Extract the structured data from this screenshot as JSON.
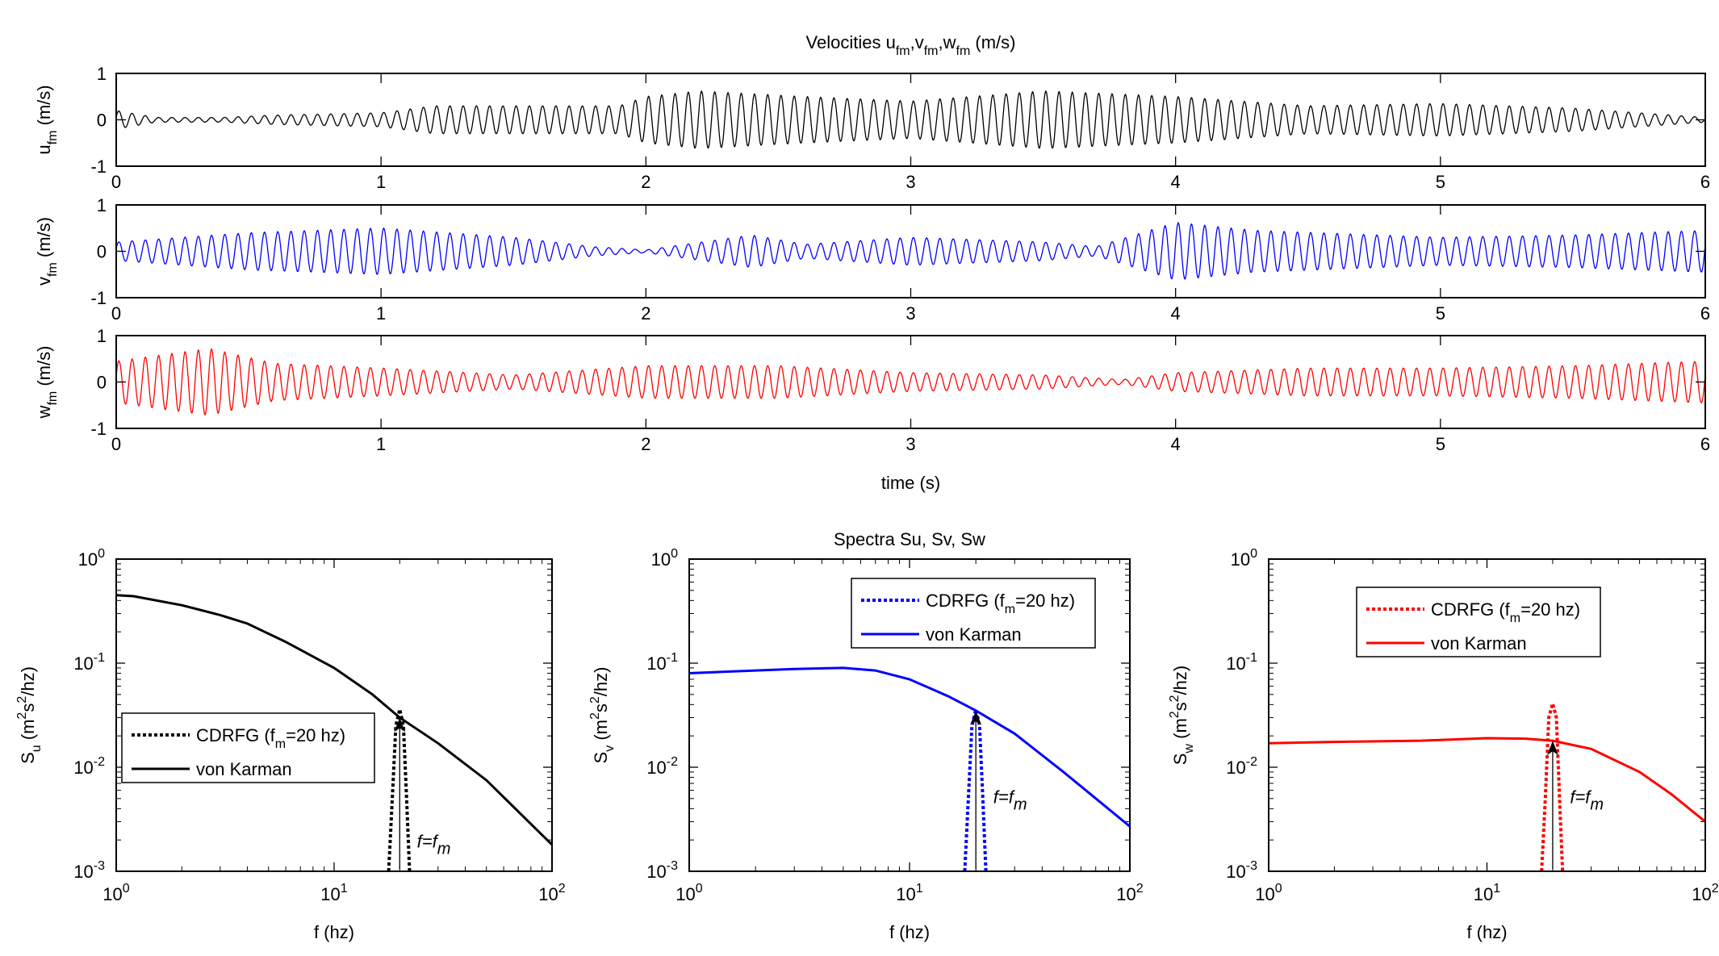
{
  "chart_data": [
    {
      "type": "line",
      "title": "Velocities u_fm,v_fm,w_fm (m/s)",
      "title_parts": [
        "Velocities u",
        "fm",
        ",v",
        "fm",
        ",w",
        "fm",
        " (m/s)"
      ],
      "xlabel": "time (s)",
      "xlim": [
        0,
        6
      ],
      "xticks": [
        "0",
        "1",
        "2",
        "3",
        "4",
        "5",
        "6"
      ],
      "frequency_hz": 20,
      "panels": [
        {
          "ylabel": "u",
          "ylabel_sub": "fm",
          "ylabel_unit": "(m/s)",
          "ylim": [
            -1,
            1
          ],
          "yticks": [
            "-1",
            "0",
            "1"
          ],
          "color": "#000000",
          "envelope": {
            "t": [
              0,
              0.15,
              0.4,
              0.6,
              1,
              1.2,
              1.9,
              2.0,
              2.2,
              2.6,
              3,
              3.5,
              4,
              4.5,
              5,
              5.5,
              6
            ],
            "amp": [
              0.2,
              0.05,
              0.05,
              0.1,
              0.15,
              0.3,
              0.3,
              0.5,
              0.62,
              0.5,
              0.4,
              0.62,
              0.5,
              0.3,
              0.35,
              0.25,
              0.05
            ]
          }
        },
        {
          "ylabel": "v",
          "ylabel_sub": "fm",
          "ylabel_unit": "(m/s)",
          "ylim": [
            -1,
            1
          ],
          "yticks": [
            "-1",
            "0",
            "1"
          ],
          "color": "#0000ff",
          "envelope": {
            "t": [
              0,
              0.5,
              1,
              1.5,
              1.8,
              2,
              2.4,
              2.6,
              3,
              3.5,
              3.7,
              4,
              4.3,
              5,
              5.5,
              6
            ],
            "amp": [
              0.2,
              0.4,
              0.5,
              0.3,
              0.1,
              0.03,
              0.35,
              0.15,
              0.3,
              0.2,
              0.1,
              0.62,
              0.45,
              0.3,
              0.35,
              0.45
            ]
          }
        },
        {
          "ylabel": "w",
          "ylabel_sub": "fm",
          "ylabel_unit": "(m/s)",
          "ylim": [
            -1,
            1
          ],
          "yticks": [
            "-1",
            "0",
            "1"
          ],
          "color": "#ff0000",
          "envelope": {
            "t": [
              0,
              0.35,
              0.6,
              1,
              1.5,
              2,
              2.5,
              3,
              3.5,
              3.8,
              4,
              4.5,
              5,
              5.5,
              6
            ],
            "amp": [
              0.45,
              0.72,
              0.4,
              0.3,
              0.15,
              0.35,
              0.35,
              0.2,
              0.15,
              0.05,
              0.2,
              0.3,
              0.3,
              0.35,
              0.45
            ]
          }
        }
      ]
    },
    {
      "type": "line",
      "title": "Spectra Su, Sv, Sw",
      "xscale": "log",
      "yscale": "log",
      "xlim": [
        1,
        100
      ],
      "ylim": [
        0.001,
        1
      ],
      "xlabel": "f (hz)",
      "xticks": [
        {
          "base": "10",
          "exp": "0"
        },
        {
          "base": "10",
          "exp": "1"
        },
        {
          "base": "10",
          "exp": "2"
        }
      ],
      "yticks": [
        {
          "base": "10",
          "exp": "-3"
        },
        {
          "base": "10",
          "exp": "-2"
        },
        {
          "base": "10",
          "exp": "-1"
        },
        {
          "base": "10",
          "exp": "0"
        }
      ],
      "annotation": {
        "text": "f=f",
        "sub": "m",
        "f": 20
      },
      "panels": [
        {
          "ylabel": "S",
          "ylabel_sub": "u",
          "ylabel_unit": "(m",
          "ylabel_sup": "2",
          "ylabel_rest": "s",
          "ylabel_sup2": "2",
          "ylabel_end": "/hz)",
          "color": "#000000",
          "legend_position": "lower-left",
          "series": [
            {
              "name": "CDRFG (f_m=20 hz)",
              "legend_parts": [
                "CDRFG (f",
                "m",
                "=20 hz)"
              ],
              "style": "dotted",
              "f": [
                17.8,
                18.5,
                19.2,
                20,
                20.8,
                21.5,
                22.2
              ],
              "S": [
                0.001,
                0.005,
                0.025,
                0.036,
                0.025,
                0.005,
                0.001
              ]
            },
            {
              "name": "von Karman",
              "legend_parts": [
                "von Karman"
              ],
              "style": "solid",
              "f": [
                1,
                1.2,
                2,
                3,
                4,
                6,
                10,
                15,
                20,
                30,
                50,
                100
              ],
              "S": [
                0.45,
                0.44,
                0.36,
                0.29,
                0.24,
                0.16,
                0.09,
                0.05,
                0.03,
                0.017,
                0.0075,
                0.0018
              ]
            }
          ],
          "annotation_pos": {
            "f": 24,
            "S": 0.0017
          }
        },
        {
          "ylabel": "S",
          "ylabel_sub": "v",
          "ylabel_unit": "(m",
          "ylabel_sup": "2",
          "ylabel_rest": "s",
          "ylabel_sup2": "2",
          "ylabel_end": "/hz)",
          "color": "#0000ff",
          "legend_position": "top-center",
          "series": [
            {
              "name": "CDRFG (f_m=20 hz)",
              "legend_parts": [
                "CDRFG (f",
                "m",
                "=20 hz)"
              ],
              "style": "dotted",
              "f": [
                17.8,
                18.5,
                19.2,
                20,
                20.8,
                21.5,
                22.2
              ],
              "S": [
                0.001,
                0.005,
                0.025,
                0.036,
                0.025,
                0.005,
                0.001
              ]
            },
            {
              "name": "von Karman",
              "legend_parts": [
                "von Karman"
              ],
              "style": "solid",
              "f": [
                1,
                2,
                3,
                5,
                7,
                10,
                15,
                20,
                30,
                50,
                100
              ],
              "S": [
                0.08,
                0.085,
                0.088,
                0.09,
                0.085,
                0.07,
                0.048,
                0.035,
                0.021,
                0.009,
                0.0027
              ]
            }
          ],
          "annotation_pos": {
            "f": 24,
            "S": 0.0045
          }
        },
        {
          "ylabel": "S",
          "ylabel_sub": "w",
          "ylabel_unit": "(m",
          "ylabel_sup": "2",
          "ylabel_rest": "s",
          "ylabel_sup2": "2",
          "ylabel_end": "/hz)",
          "color": "#ff0000",
          "legend_position": "top-center",
          "series": [
            {
              "name": "CDRFG (f_m=20 hz)",
              "legend_parts": [
                "CDRFG (f",
                "m",
                "=20 hz)"
              ],
              "style": "dotted",
              "f": [
                17.8,
                18.5,
                19.2,
                20,
                20.8,
                21.5,
                22.2
              ],
              "S": [
                0.001,
                0.005,
                0.03,
                0.041,
                0.03,
                0.005,
                0.001
              ]
            },
            {
              "name": "von Karman",
              "legend_parts": [
                "von Karman"
              ],
              "style": "solid",
              "f": [
                1,
                2,
                5,
                10,
                15,
                20,
                30,
                50,
                70,
                100
              ],
              "S": [
                0.017,
                0.0175,
                0.018,
                0.019,
                0.0188,
                0.018,
                0.015,
                0.009,
                0.0055,
                0.003
              ]
            }
          ],
          "annotation_pos": {
            "f": 24,
            "S": 0.0045
          }
        }
      ]
    }
  ]
}
